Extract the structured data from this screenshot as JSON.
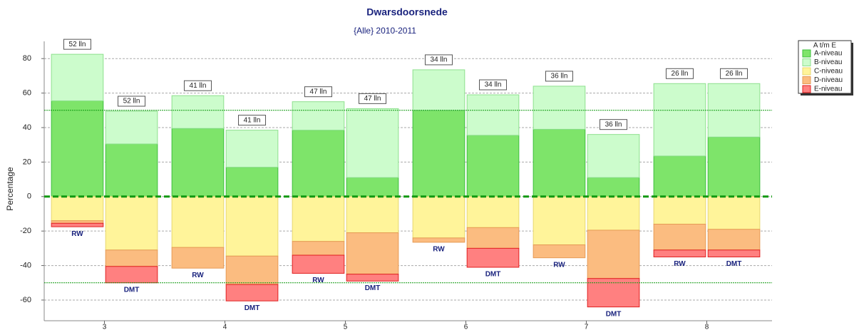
{
  "chart_data": {
    "type": "diverging_stacked_bar",
    "title": "Dwarsdoorsnede",
    "subtitle": "{Alle} 2010-2011",
    "y_label": "Percentage",
    "legend_title": "A t/m E",
    "groups": [
      3,
      4,
      5,
      6,
      7,
      8
    ],
    "xlim": [
      2.5,
      8.5
    ],
    "xticks": [
      3,
      4,
      5,
      6,
      7,
      8
    ],
    "ylim": [
      -72,
      90
    ],
    "yticks": [
      -60,
      -40,
      -20,
      0,
      20,
      40,
      60,
      80
    ],
    "reference_lines": [
      50,
      0,
      -50
    ],
    "bar_groups": [
      3,
      3,
      4,
      4,
      5,
      5,
      6,
      6,
      7,
      7,
      8,
      8
    ],
    "bar_names": [
      "RW",
      "DMT",
      "RW",
      "DMT",
      "RW",
      "DMT",
      "RW",
      "DMT",
      "RW",
      "DMT",
      "RW",
      "DMT"
    ],
    "bar_counts": [
      "52 lln",
      "52 lln",
      "41 lln",
      "41 lln",
      "47 lln",
      "47 lln",
      "34 lln",
      "34 lln",
      "36 lln",
      "36 lln",
      "26 lln",
      "26 lln"
    ],
    "grid": true,
    "legend": "right",
    "series": [
      {
        "name": "A-niveau",
        "color": "#7ee46a",
        "stroke": "#3cbf3c",
        "values": [
          55.5,
          30.5,
          39.5,
          17,
          38.5,
          11,
          50,
          35.5,
          39,
          11,
          23.5,
          34.5
        ]
      },
      {
        "name": "B-niveau",
        "color": "#ccfccc",
        "stroke": "#8ee08e",
        "values": [
          27,
          19,
          19,
          21.5,
          16.5,
          40,
          23.5,
          23.5,
          25,
          25,
          42,
          31
        ]
      },
      {
        "name": "C-niveau",
        "color": "#fff49a",
        "stroke": "#e8d870",
        "values": [
          -14,
          -31,
          -29.5,
          -34.5,
          -26,
          -21,
          -24,
          -18,
          -28,
          -19.5,
          -16,
          -19
        ]
      },
      {
        "name": "D-niveau",
        "color": "#fbbc80",
        "stroke": "#e69a55",
        "values": [
          -1.5,
          -9.5,
          -12,
          -16.5,
          -8,
          -24,
          -2.5,
          -12,
          -7.5,
          -28,
          -15,
          -12
        ]
      },
      {
        "name": "E-niveau",
        "color": "#ff8080",
        "stroke": "#e02020",
        "values": [
          -2,
          -9.5,
          0,
          -9.5,
          -10.5,
          -4,
          0,
          -11,
          0,
          -16.5,
          -4,
          -4
        ]
      }
    ]
  }
}
